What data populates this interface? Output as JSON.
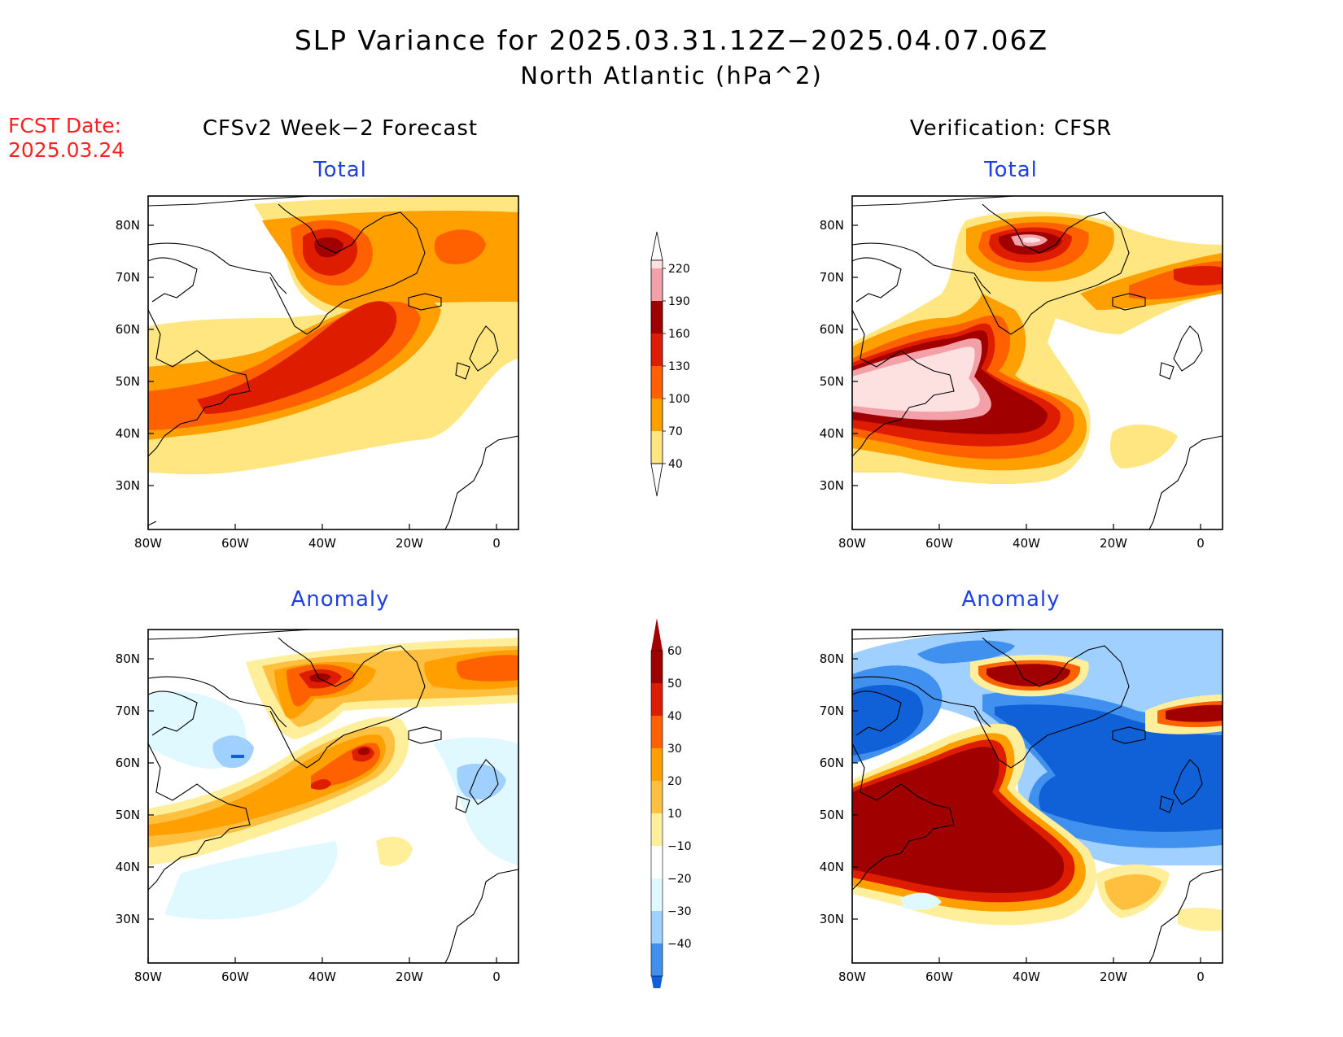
{
  "header": {
    "title": "SLP Variance for 2025.03.31.12Z−2025.04.07.06Z",
    "subtitle": "North Atlantic (hPa^2)",
    "fcst_label": "FCST Date:",
    "fcst_date": "2025.03.24"
  },
  "columns": {
    "left": "CFSv2 Week−2 Forecast",
    "right": "Verification: CFSR"
  },
  "panels": {
    "top_left": "Total",
    "top_right": "Total",
    "bottom_left": "Anomaly",
    "bottom_right": "Anomaly"
  },
  "axes": {
    "lat_labels": [
      "80N",
      "70N",
      "60N",
      "50N",
      "40N",
      "30N"
    ],
    "lon_labels": [
      "80W",
      "60W",
      "40W",
      "20W",
      "0"
    ]
  },
  "colorbar_total": {
    "levels": [
      "220",
      "190",
      "160",
      "130",
      "100",
      "70",
      "40"
    ],
    "colors": [
      "#fde0e0",
      "#f4a0a8",
      "#a00000",
      "#dd1c00",
      "#ff6000",
      "#ffa000",
      "#ffe680"
    ]
  },
  "colorbar_anomaly": {
    "levels": [
      "60",
      "50",
      "40",
      "30",
      "20",
      "10",
      "−10",
      "−20",
      "−30",
      "−40"
    ],
    "colors": [
      "#a00000",
      "#dd1c00",
      "#ff6000",
      "#ffa000",
      "#ffc040",
      "#ffef9a",
      "#ffffff",
      "#e0f8ff",
      "#a0d0ff",
      "#4090f0",
      "#1060d8"
    ]
  }
}
